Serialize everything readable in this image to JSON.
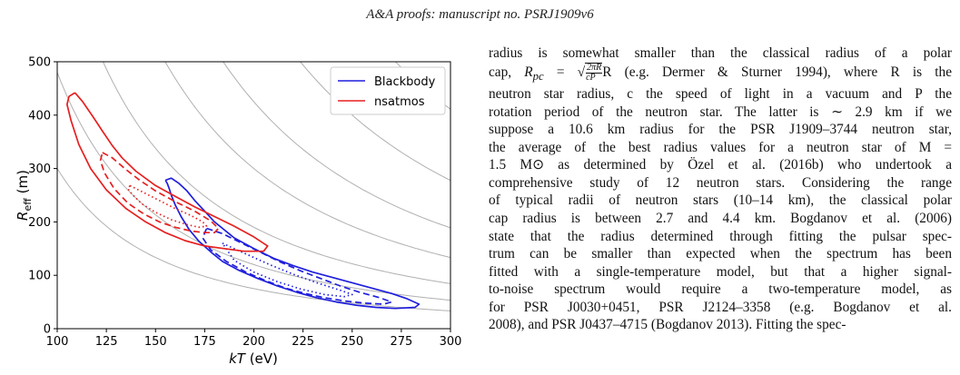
{
  "header": "A&A proofs: manuscript no. PSRJ1909v6",
  "chart_data": {
    "type": "line",
    "xlabel": "kT (eV)",
    "ylabel": "R_eff (m)",
    "xlim": [
      100,
      300
    ],
    "ylim": [
      0,
      500
    ],
    "xticks": [
      "100",
      "125",
      "150",
      "175",
      "200",
      "225",
      "250",
      "275",
      "300"
    ],
    "yticks": [
      "0",
      "100",
      "200",
      "300",
      "400",
      "500"
    ],
    "legend": {
      "placement": "top-right",
      "entries": [
        "Blackbody",
        "nsatmos"
      ]
    },
    "colors": {
      "Blackbody": "#1f1fdd",
      "nsatmos": "#e62020",
      "grid_curves": "#b0b0b0"
    },
    "background_curves_constant": [
      3000000,
      4800000,
      7600000,
      12000000,
      17000000,
      25000000,
      37000000
    ],
    "series": [
      {
        "name": "Blackbody",
        "style": "solid",
        "x": [
          155,
          158,
          162,
          166,
          170,
          175,
          180,
          190,
          200,
          210,
          220,
          230,
          240,
          250,
          260,
          270,
          278,
          284,
          282,
          272,
          262,
          252,
          242,
          232,
          222,
          212,
          202,
          192,
          184,
          178,
          172,
          167,
          163,
          160,
          158,
          157,
          156,
          155
        ],
        "y": [
          278,
          282,
          272,
          258,
          240,
          220,
          200,
          170,
          150,
          132,
          118,
          106,
          96,
          86,
          76,
          66,
          56,
          46,
          40,
          38,
          40,
          44,
          50,
          58,
          68,
          80,
          94,
          110,
          126,
          144,
          164,
          186,
          210,
          232,
          250,
          262,
          272,
          278
        ]
      },
      {
        "name": "Blackbody",
        "style": "dashed",
        "x": [
          176,
          184,
          194,
          204,
          214,
          224,
          234,
          244,
          254,
          264,
          270,
          266,
          256,
          246,
          236,
          226,
          216,
          206,
          196,
          186,
          178,
          174,
          176
        ],
        "y": [
          188,
          178,
          160,
          142,
          124,
          108,
          94,
          80,
          68,
          58,
          50,
          46,
          48,
          52,
          58,
          66,
          76,
          90,
          106,
          126,
          148,
          170,
          188
        ]
      },
      {
        "name": "Blackbody",
        "style": "dotted",
        "x": [
          184,
          196,
          208,
          220,
          232,
          244,
          250,
          246,
          236,
          224,
          212,
          200,
          190,
          184
        ],
        "y": [
          160,
          140,
          120,
          102,
          86,
          72,
          64,
          60,
          64,
          74,
          88,
          106,
          128,
          160
        ]
      },
      {
        "name": "nsatmos",
        "style": "solid",
        "x": [
          109,
          113,
          118,
          123,
          128,
          133,
          140,
          150,
          160,
          170,
          180,
          190,
          200,
          207,
          205,
          195,
          185,
          175,
          165,
          155,
          145,
          135,
          125,
          117,
          111,
          107,
          105,
          106,
          109
        ],
        "y": [
          442,
          425,
          398,
          370,
          343,
          320,
          295,
          268,
          248,
          228,
          210,
          192,
          172,
          155,
          145,
          145,
          150,
          155,
          165,
          180,
          200,
          225,
          260,
          300,
          345,
          390,
          420,
          435,
          442
        ]
      },
      {
        "name": "nsatmos",
        "style": "dashed",
        "x": [
          123,
          128,
          135,
          142,
          150,
          160,
          170,
          178,
          182,
          180,
          175,
          168,
          160,
          152,
          144,
          136,
          129,
          124,
          122,
          123
        ],
        "y": [
          330,
          320,
          298,
          278,
          258,
          238,
          220,
          202,
          188,
          180,
          180,
          183,
          190,
          200,
          215,
          235,
          262,
          292,
          315,
          330
        ]
      },
      {
        "name": "nsatmos",
        "style": "dotted",
        "x": [
          137,
          144,
          152,
          160,
          168,
          174,
          176,
          172,
          166,
          158,
          150,
          143,
          138,
          136,
          137
        ],
        "y": [
          268,
          255,
          240,
          225,
          212,
          200,
          192,
          190,
          195,
          204,
          218,
          234,
          252,
          262,
          268
        ]
      }
    ]
  },
  "text": {
    "lines": [
      "radius is somewhat smaller than the classical radius of a polar",
      "neutron star radius, c the speed of light in a vacuum and P the",
      "rotation period of the neutron star. The latter is ∼ 2.9 km if we",
      "suppose a 10.6 km radius for the PSR J1909–3744 neutron star,",
      "the average of the best radius values for a neutron star of M =",
      "1.5 M⊙ as determined by Özel et al. (2016b) who undertook a",
      "comprehensive study of 12 neutron stars. Considering the range",
      "of typical radii of neutron stars (10–14 km), the classical polar",
      "cap radius is between 2.7 and 4.4 km. Bogdanov et al. (2006)",
      "state that the radius determined through fitting the pulsar spec-",
      "trum can be smaller than expected when the spectrum has been",
      "fitted with a single-temperature model, but that a higher signal-",
      "to-noise spectrum would require a two-temperature model, as",
      "for PSR J0030+0451, PSR J2124–3358 (e.g. Bogdanov et al.",
      "2008), and PSR J0437–4715 (Bogdanov 2013). Fitting the spec-"
    ],
    "formula_prefix": "cap, ",
    "formula_lhs": "R",
    "formula_sub": "pc",
    "formula_eq": " = ",
    "frac_num": "2πR",
    "frac_den": "cP",
    "formula_after": "R (e.g. Dermer & Sturner 1994), where R is the"
  }
}
